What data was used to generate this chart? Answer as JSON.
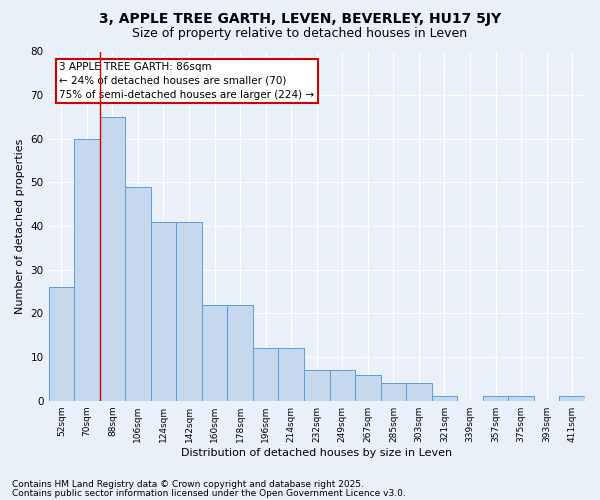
{
  "title1": "3, APPLE TREE GARTH, LEVEN, BEVERLEY, HU17 5JY",
  "title2": "Size of property relative to detached houses in Leven",
  "xlabel": "Distribution of detached houses by size in Leven",
  "ylabel": "Number of detached properties",
  "categories": [
    "52sqm",
    "70sqm",
    "88sqm",
    "106sqm",
    "124sqm",
    "142sqm",
    "160sqm",
    "178sqm",
    "196sqm",
    "214sqm",
    "232sqm",
    "249sqm",
    "267sqm",
    "285sqm",
    "303sqm",
    "321sqm",
    "339sqm",
    "357sqm",
    "375sqm",
    "393sqm",
    "411sqm"
  ],
  "bar_values": [
    26,
    60,
    65,
    49,
    41,
    41,
    22,
    22,
    12,
    12,
    7,
    7,
    6,
    4,
    4,
    1,
    0,
    1,
    1,
    0,
    1
  ],
  "bar_color": "#c5d8ed",
  "bar_edge_color": "#5b9bd5",
  "annotation_box_color": "#ffffff",
  "annotation_border_color": "#cc0000",
  "annotation_text": "3 APPLE TREE GARTH: 86sqm\n← 24% of detached houses are smaller (70)\n75% of semi-detached houses are larger (224) →",
  "vline_color": "#cc0000",
  "ylim": [
    0,
    80
  ],
  "yticks": [
    0,
    10,
    20,
    30,
    40,
    50,
    60,
    70,
    80
  ],
  "bg_color": "#eaf0f9",
  "fig_bg_color": "#eaf0f9",
  "footer1": "Contains HM Land Registry data © Crown copyright and database right 2025.",
  "footer2": "Contains public sector information licensed under the Open Government Licence v3.0.",
  "title_fontsize": 10,
  "subtitle_fontsize": 9,
  "annotation_fontsize": 7.5,
  "footer_fontsize": 6.5,
  "ylabel_fontsize": 8,
  "xlabel_fontsize": 8
}
